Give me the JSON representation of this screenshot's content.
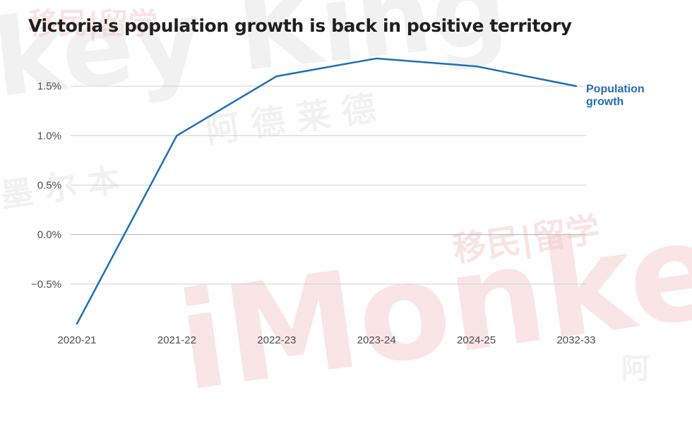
{
  "chart_data": {
    "type": "line",
    "title": "Victoria's population growth is back in positive territory",
    "x": [
      "2020-21",
      "2021-22",
      "2022-23",
      "2023-24",
      "2024-25",
      "2032-33"
    ],
    "series": [
      {
        "name": "Population growth",
        "values": [
          -0.9,
          1.0,
          1.6,
          1.78,
          1.7,
          1.5
        ],
        "color": "#1f6fb5"
      }
    ],
    "ylim": [
      -0.95,
      1.9
    ],
    "yticks": [
      1.5,
      1.0,
      0.5,
      0.0,
      -0.5
    ],
    "ytick_labels": [
      "1.5%",
      "1.0%",
      "0.5%",
      "0.0%",
      "−0.5%"
    ],
    "grid": true,
    "legend": "inline-end-of-line"
  },
  "watermarks": {
    "top_latin": "key King",
    "bottom_latin": "iMonkey K",
    "cjk_top": "移民|留学",
    "cjk_mid": "阿 德 莱 德",
    "cjk_left": "墨 尔 本",
    "cjk_right": "移民|留学",
    "cjk_bottom": "阿"
  },
  "colors": {
    "line": "#1f6fb5",
    "grid": "#d0d0d0",
    "zero": "#b0b0b0",
    "text": "#4d4d4d"
  }
}
